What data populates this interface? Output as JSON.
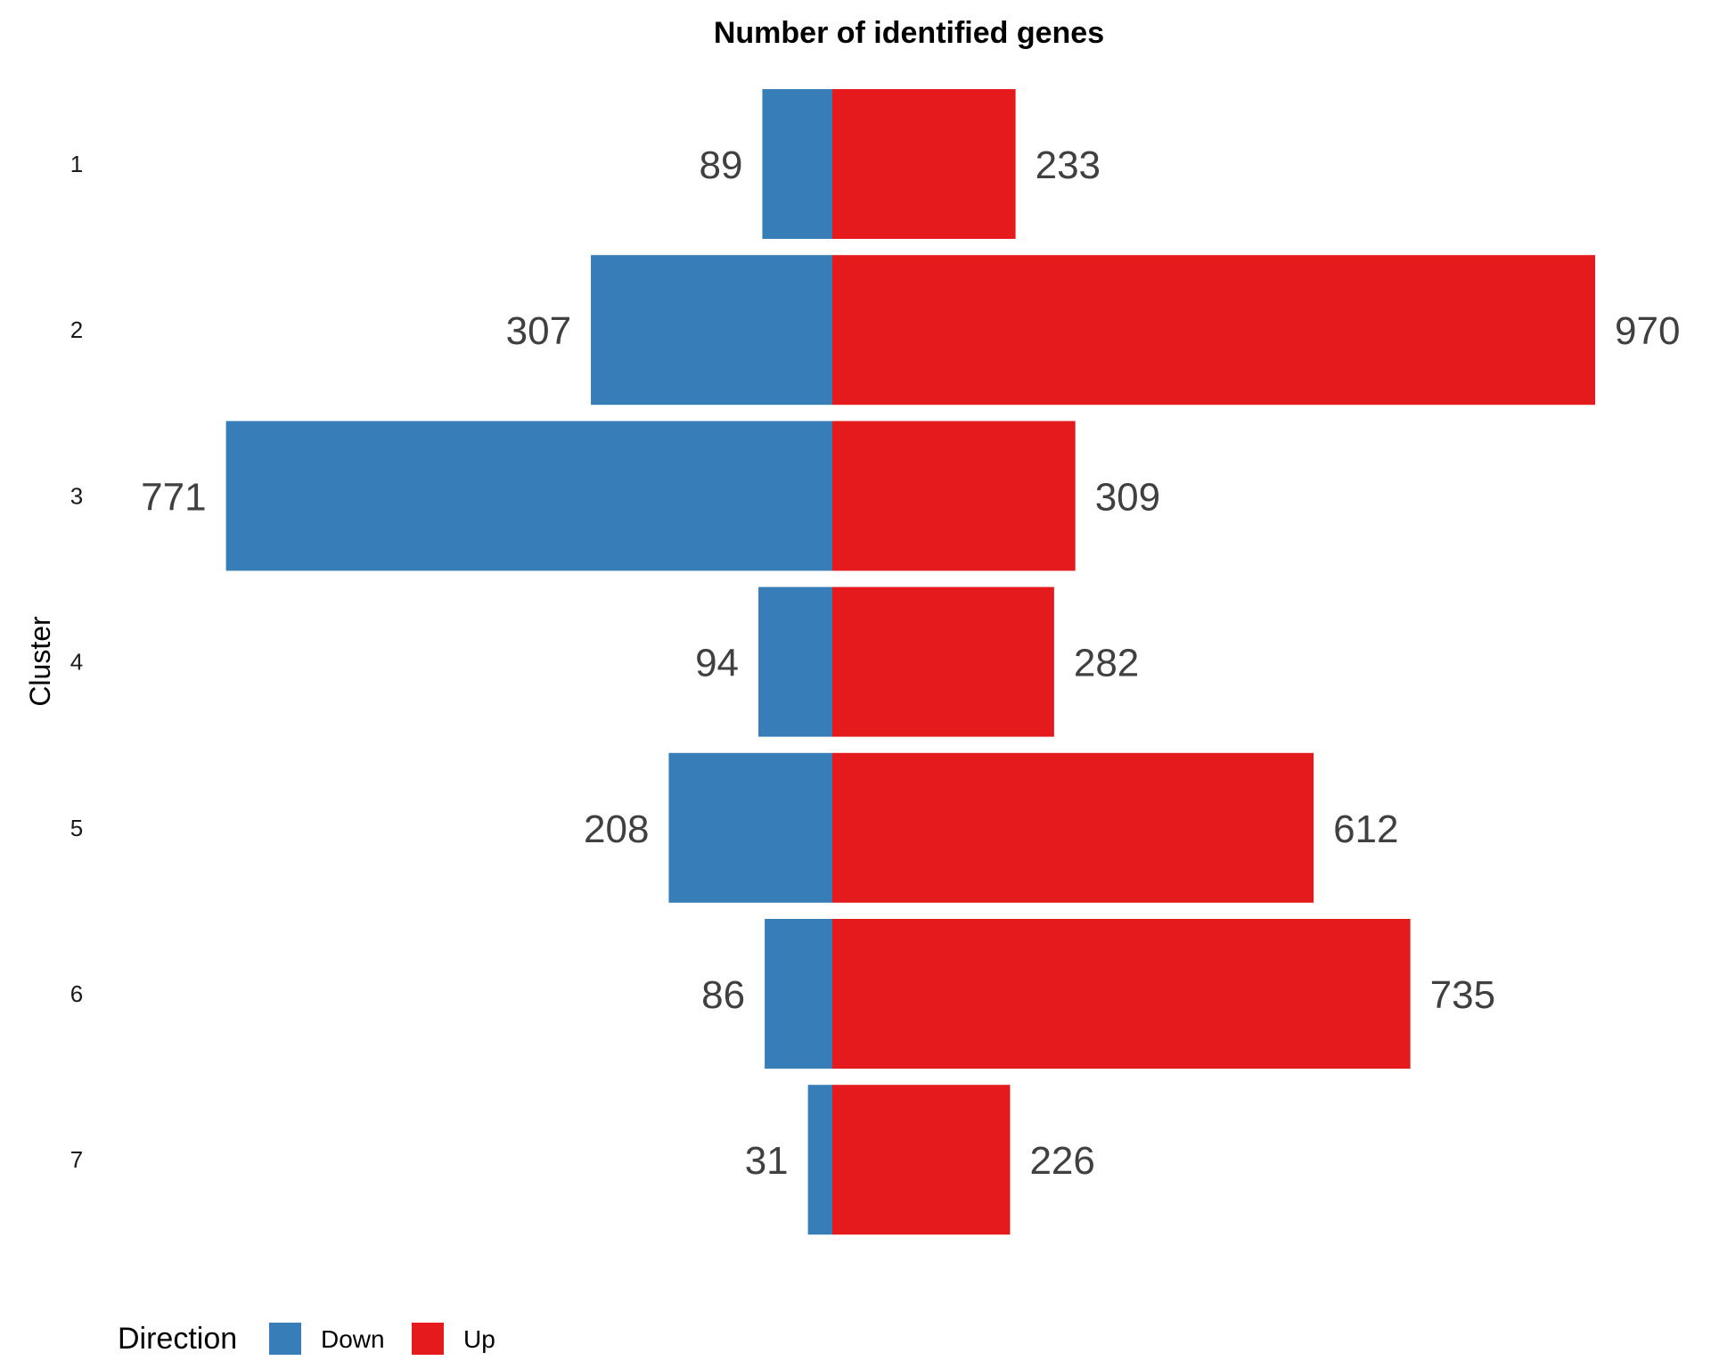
{
  "chart_data": {
    "type": "bar",
    "orientation": "horizontal-diverging",
    "title": "Number of identified genes",
    "ylabel": "Cluster",
    "categories": [
      "1",
      "2",
      "3",
      "4",
      "5",
      "6",
      "7"
    ],
    "series": [
      {
        "name": "Down",
        "color": "#377EB8",
        "values": [
          89,
          307,
          771,
          94,
          208,
          86,
          31
        ]
      },
      {
        "name": "Up",
        "color": "#E41A1C",
        "values": [
          233,
          970,
          309,
          282,
          612,
          735,
          226
        ]
      }
    ],
    "xlim": [
      -890,
      1090
    ],
    "grid": false,
    "legend": {
      "title": "Direction",
      "position": "bottom-left"
    }
  }
}
